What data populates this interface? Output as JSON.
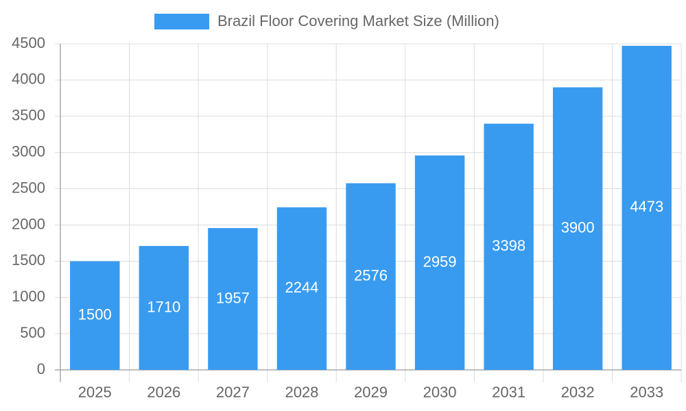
{
  "chart_data": {
    "type": "bar",
    "categories": [
      "2025",
      "2026",
      "2027",
      "2028",
      "2029",
      "2030",
      "2031",
      "2032",
      "2033"
    ],
    "series": [
      {
        "name": "Brazil Floor Covering Market Size (Million)",
        "color": "#389bf0",
        "values": [
          1500,
          1710,
          1957,
          2244,
          2576,
          2959,
          3398,
          3900,
          4473
        ]
      }
    ],
    "ylim": [
      0,
      4500
    ],
    "yticks": [
      0,
      500,
      1000,
      1500,
      2000,
      2500,
      3000,
      3500,
      4000,
      4500
    ],
    "grid": true,
    "legend": "top",
    "data_labels": true
  }
}
